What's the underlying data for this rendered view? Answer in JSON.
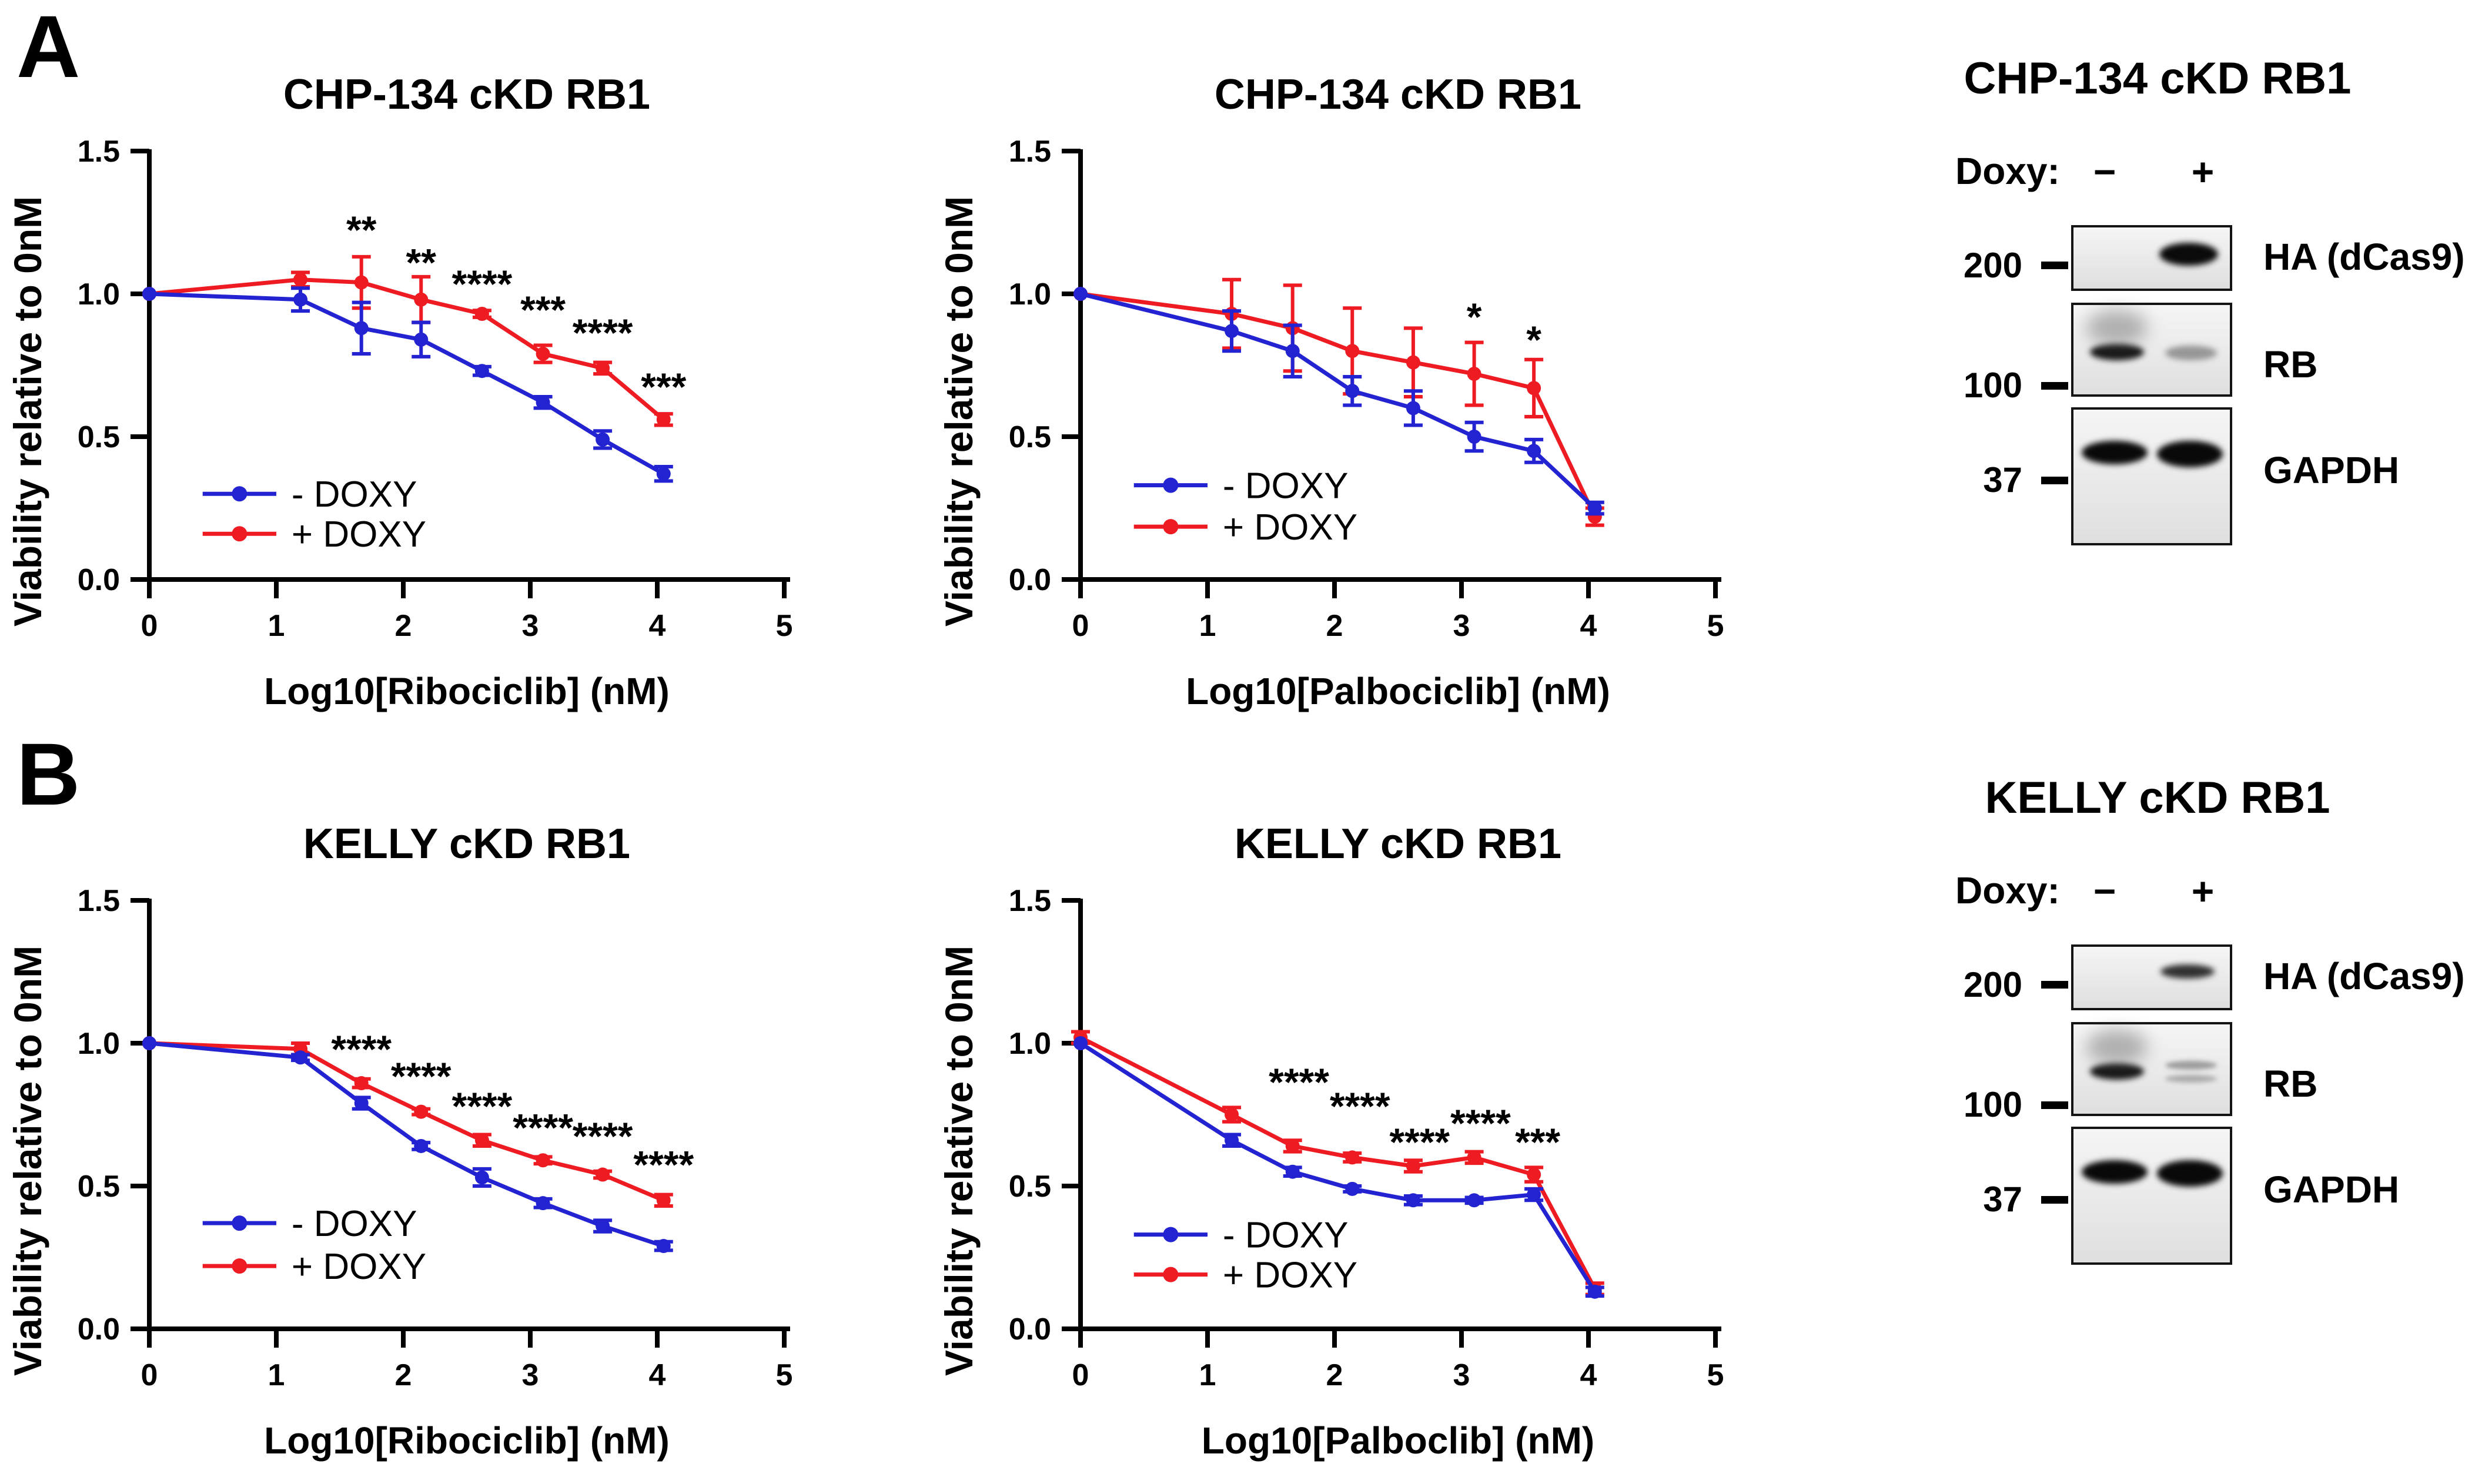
{
  "figure": {
    "panel_a_label": "A",
    "panel_b_label": "B",
    "colors": {
      "minus_doxy": "#2323d2",
      "plus_doxy": "#ee1b23",
      "axis": "#000000"
    }
  },
  "chart_data": [
    {
      "type": "line",
      "panel": "A",
      "title": "CHP-134 cKD RB1",
      "xlabel": "Log10[Ribociclib] (nM)",
      "ylabel": "Viability relative to 0nM",
      "xlim": [
        0,
        5
      ],
      "ylim": [
        0,
        1.5
      ],
      "xticks": [
        "0",
        "1",
        "2",
        "3",
        "4",
        "5"
      ],
      "yticks": [
        "0.0",
        "0.5",
        "1.0",
        "1.5"
      ],
      "grid": false,
      "legend_position": "inside-lower-left",
      "legend_y": [
        0.3,
        0.16
      ],
      "x": [
        0,
        1.19,
        1.67,
        2.14,
        2.62,
        3.1,
        3.57,
        4.05
      ],
      "series": [
        {
          "name": "- DOXY",
          "color_key": "minus_doxy",
          "values": [
            1.0,
            0.98,
            0.88,
            0.84,
            0.73,
            0.62,
            0.49,
            0.37
          ],
          "errors": [
            0,
            0.04,
            0.09,
            0.06,
            0.015,
            0.02,
            0.03,
            0.025
          ]
        },
        {
          "name": "+ DOXY",
          "color_key": "plus_doxy",
          "values": [
            1.0,
            1.05,
            1.04,
            0.98,
            0.93,
            0.79,
            0.74,
            0.56
          ],
          "errors": [
            0,
            0.025,
            0.09,
            0.08,
            0.012,
            0.03,
            0.02,
            0.02
          ]
        }
      ],
      "significance": [
        {
          "x": 1.67,
          "y": 1.235,
          "label": "**"
        },
        {
          "x": 2.14,
          "y": 1.12,
          "label": "**"
        },
        {
          "x": 2.62,
          "y": 1.045,
          "label": "****"
        },
        {
          "x": 3.1,
          "y": 0.955,
          "label": "***"
        },
        {
          "x": 3.57,
          "y": 0.875,
          "label": "****"
        },
        {
          "x": 4.05,
          "y": 0.685,
          "label": "***"
        }
      ]
    },
    {
      "type": "line",
      "panel": "A",
      "title": "CHP-134 cKD RB1",
      "xlabel": "Log10[Palbociclib] (nM)",
      "ylabel": "Viability relative to 0nM",
      "xlim": [
        0,
        5
      ],
      "ylim": [
        0,
        1.5
      ],
      "xticks": [
        "0",
        "1",
        "2",
        "3",
        "4",
        "5"
      ],
      "yticks": [
        "0.0",
        "0.5",
        "1.0",
        "1.5"
      ],
      "grid": false,
      "legend_position": "inside-lower-left",
      "legend_y": [
        0.33,
        0.185
      ],
      "x": [
        0,
        1.19,
        1.67,
        2.14,
        2.62,
        3.1,
        3.57,
        4.05
      ],
      "series": [
        {
          "name": "- DOXY",
          "color_key": "minus_doxy",
          "values": [
            1.0,
            0.87,
            0.8,
            0.66,
            0.6,
            0.5,
            0.45,
            0.25
          ],
          "errors": [
            0,
            0.07,
            0.09,
            0.05,
            0.06,
            0.05,
            0.04,
            0.02
          ]
        },
        {
          "name": "+ DOXY",
          "color_key": "plus_doxy",
          "values": [
            1.0,
            0.93,
            0.88,
            0.8,
            0.76,
            0.72,
            0.67,
            0.22
          ],
          "errors": [
            0,
            0.12,
            0.15,
            0.15,
            0.12,
            0.11,
            0.1,
            0.03
          ]
        }
      ],
      "significance": [
        {
          "x": 3.1,
          "y": 0.93,
          "label": "*"
        },
        {
          "x": 3.57,
          "y": 0.85,
          "label": "*"
        }
      ]
    },
    {
      "type": "line",
      "panel": "B",
      "title": "KELLY cKD RB1",
      "xlabel": "Log10[Ribociclib] (nM)",
      "ylabel": "Viability relative to 0nM",
      "xlim": [
        0,
        5
      ],
      "ylim": [
        0,
        1.5
      ],
      "xticks": [
        "0",
        "1",
        "2",
        "3",
        "4",
        "5"
      ],
      "yticks": [
        "0.0",
        "0.5",
        "1.0",
        "1.5"
      ],
      "grid": false,
      "legend_position": "inside-lower-left",
      "legend_y": [
        0.37,
        0.22
      ],
      "x": [
        0,
        1.19,
        1.67,
        2.14,
        2.62,
        3.1,
        3.57,
        4.05
      ],
      "series": [
        {
          "name": "- DOXY",
          "color_key": "minus_doxy",
          "values": [
            1.0,
            0.95,
            0.79,
            0.64,
            0.53,
            0.44,
            0.36,
            0.29
          ],
          "errors": [
            0,
            0.01,
            0.02,
            0.012,
            0.03,
            0.015,
            0.02,
            0.015
          ]
        },
        {
          "name": "+ DOXY",
          "color_key": "plus_doxy",
          "values": [
            1.0,
            0.98,
            0.86,
            0.76,
            0.66,
            0.59,
            0.54,
            0.45
          ],
          "errors": [
            0,
            0.02,
            0.015,
            0.01,
            0.02,
            0.012,
            0.012,
            0.02
          ]
        }
      ],
      "significance": [
        {
          "x": 1.67,
          "y": 0.99,
          "label": "****"
        },
        {
          "x": 2.14,
          "y": 0.895,
          "label": "****"
        },
        {
          "x": 2.62,
          "y": 0.79,
          "label": "****"
        },
        {
          "x": 3.1,
          "y": 0.715,
          "label": "****"
        },
        {
          "x": 3.57,
          "y": 0.685,
          "label": "****"
        },
        {
          "x": 4.05,
          "y": 0.585,
          "label": "****"
        }
      ]
    },
    {
      "type": "line",
      "panel": "B",
      "title": "KELLY cKD RB1",
      "xlabel": "Log10[Palboclib] (nM)",
      "ylabel": "Viability relative to 0nM",
      "xlim": [
        0,
        5
      ],
      "ylim": [
        0,
        1.5
      ],
      "xticks": [
        "0",
        "1",
        "2",
        "3",
        "4",
        "5"
      ],
      "yticks": [
        "0.0",
        "0.5",
        "1.0",
        "1.5"
      ],
      "grid": false,
      "legend_position": "inside-lower-left",
      "legend_y": [
        0.33,
        0.19
      ],
      "x": [
        0,
        1.19,
        1.67,
        2.14,
        2.62,
        3.1,
        3.57,
        4.05
      ],
      "series": [
        {
          "name": "- DOXY",
          "color_key": "minus_doxy",
          "values": [
            1.0,
            0.66,
            0.55,
            0.49,
            0.45,
            0.45,
            0.47,
            0.13
          ],
          "errors": [
            0,
            0.02,
            0.015,
            0.01,
            0.015,
            0.01,
            0.02,
            0.015
          ]
        },
        {
          "name": "+ DOXY",
          "color_key": "plus_doxy",
          "values": [
            1.02,
            0.75,
            0.64,
            0.6,
            0.57,
            0.6,
            0.54,
            0.14
          ],
          "errors": [
            0.02,
            0.025,
            0.02,
            0.015,
            0.02,
            0.02,
            0.025,
            0.02
          ]
        }
      ],
      "significance": [
        {
          "x": 1.72,
          "y": 0.875,
          "label": "****"
        },
        {
          "x": 2.2,
          "y": 0.79,
          "label": "****"
        },
        {
          "x": 2.67,
          "y": 0.665,
          "label": "****"
        },
        {
          "x": 3.15,
          "y": 0.73,
          "label": "****"
        },
        {
          "x": 3.6,
          "y": 0.665,
          "label": "***"
        }
      ]
    }
  ],
  "blots": [
    {
      "panel": "A",
      "title": "CHP-134 cKD RB1",
      "doxy_label": "Doxy:",
      "lane_labels": [
        "−",
        "+"
      ],
      "rows": [
        {
          "marker": "200",
          "label": "HA (dCas9)",
          "bands": {
            "minus": "none",
            "plus": "strong"
          }
        },
        {
          "marker": "100",
          "label": "RB",
          "bands": {
            "minus": "strong",
            "plus": "faint"
          }
        },
        {
          "marker": "37",
          "label": "GAPDH",
          "bands": {
            "minus": "strong",
            "plus": "strong"
          }
        }
      ]
    },
    {
      "panel": "B",
      "title": "KELLY cKD RB1",
      "doxy_label": "Doxy:",
      "lane_labels": [
        "−",
        "+"
      ],
      "rows": [
        {
          "marker": "200",
          "label": "HA (dCas9)",
          "bands": {
            "minus": "none",
            "plus": "medium"
          }
        },
        {
          "marker": "100",
          "label": "RB",
          "bands": {
            "minus": "strong",
            "plus": "faint-double"
          }
        },
        {
          "marker": "37",
          "label": "GAPDH",
          "bands": {
            "minus": "strong",
            "plus": "strong"
          }
        }
      ]
    }
  ]
}
